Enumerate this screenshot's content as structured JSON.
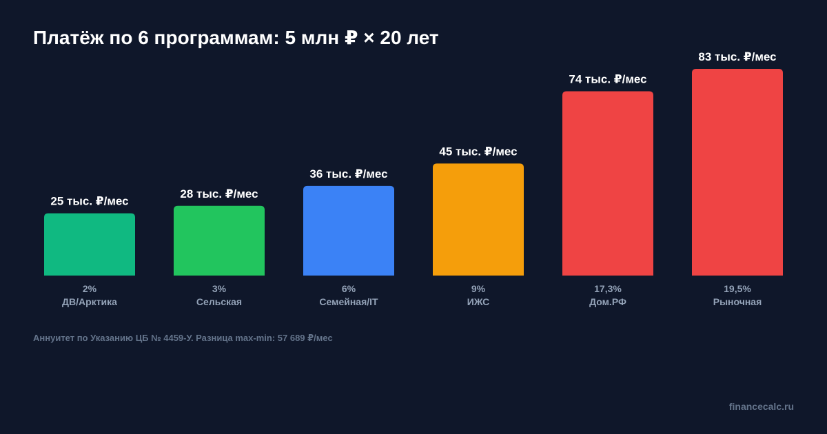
{
  "chart_data": {
    "type": "bar",
    "title": "Платёж по 6 программам: 5 млн ₽ × 20 лет",
    "categories": [
      "ДВ/Арктика",
      "Сельская",
      "Семейная/IT",
      "ИЖС",
      "Дом.РФ",
      "Рыночная"
    ],
    "rates": [
      "2%",
      "3%",
      "6%",
      "9%",
      "17,3%",
      "19,5%"
    ],
    "values": [
      25,
      28,
      36,
      45,
      74,
      83
    ],
    "value_labels": [
      "25 тыс. ₽/мес",
      "28 тыс. ₽/мес",
      "36 тыс. ₽/мес",
      "45 тыс. ₽/мес",
      "74 тыс. ₽/мес",
      "83 тыс. ₽/мес"
    ],
    "colors": [
      "#10b981",
      "#22c55e",
      "#3b82f6",
      "#f59e0b",
      "#ef4444",
      "#ef4444"
    ],
    "xlabel": "",
    "ylabel": "",
    "grid": false,
    "legend": "none"
  },
  "footnote": "Аннуитет по Указанию ЦБ № 4459-У. Разница max-min: 57 689 ₽/мес",
  "watermark": "financecalc.ru"
}
